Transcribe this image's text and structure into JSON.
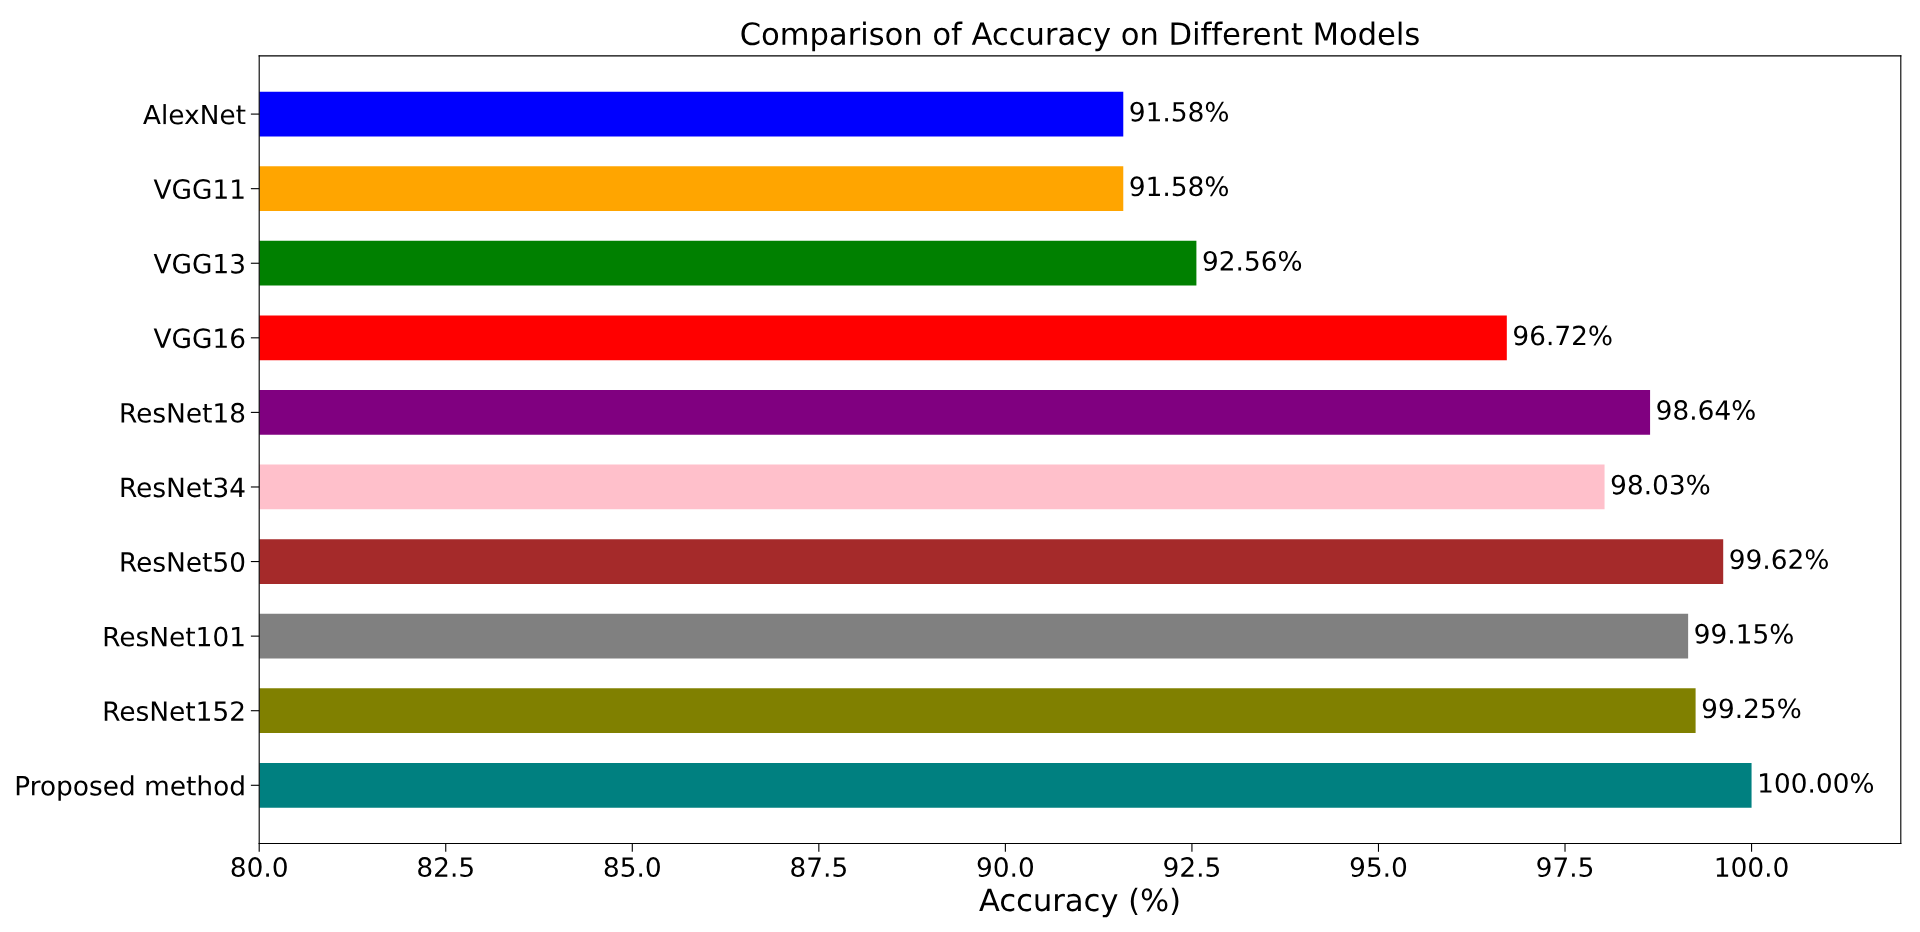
{
  "chart_data": {
    "type": "bar",
    "orientation": "horizontal",
    "title": "Comparison of Accuracy on Different Models",
    "xlabel": "Accuracy (%)",
    "categories": [
      "AlexNet",
      "VGG11",
      "VGG13",
      "VGG16",
      "ResNet18",
      "ResNet34",
      "ResNet50",
      "ResNet101",
      "ResNet152",
      "Proposed method"
    ],
    "values": [
      91.58,
      91.58,
      92.56,
      96.72,
      98.64,
      98.03,
      99.62,
      99.15,
      99.25,
      100.0
    ],
    "colors": [
      "#0000ff",
      "#ffa500",
      "#008000",
      "#ff0000",
      "#800080",
      "#ffc0cb",
      "#a52a2a",
      "#808080",
      "#808000",
      "#008080"
    ],
    "value_labels": [
      "91.58%",
      "91.58%",
      "92.56%",
      "96.72%",
      "98.64%",
      "98.03%",
      "99.62%",
      "99.15%",
      "99.25%",
      "100.00%"
    ],
    "xlim": [
      80,
      102
    ],
    "xticks": [
      {
        "value": 80,
        "label": "80.0"
      },
      82.5,
      {
        "value": 85,
        "label": "85.0"
      },
      87.5,
      {
        "value": 90,
        "label": "90.0"
      },
      92.5,
      {
        "value": 95,
        "label": "95.0"
      },
      97.5,
      {
        "value": 100,
        "label": "100.0"
      }
    ],
    "grid": false
  }
}
